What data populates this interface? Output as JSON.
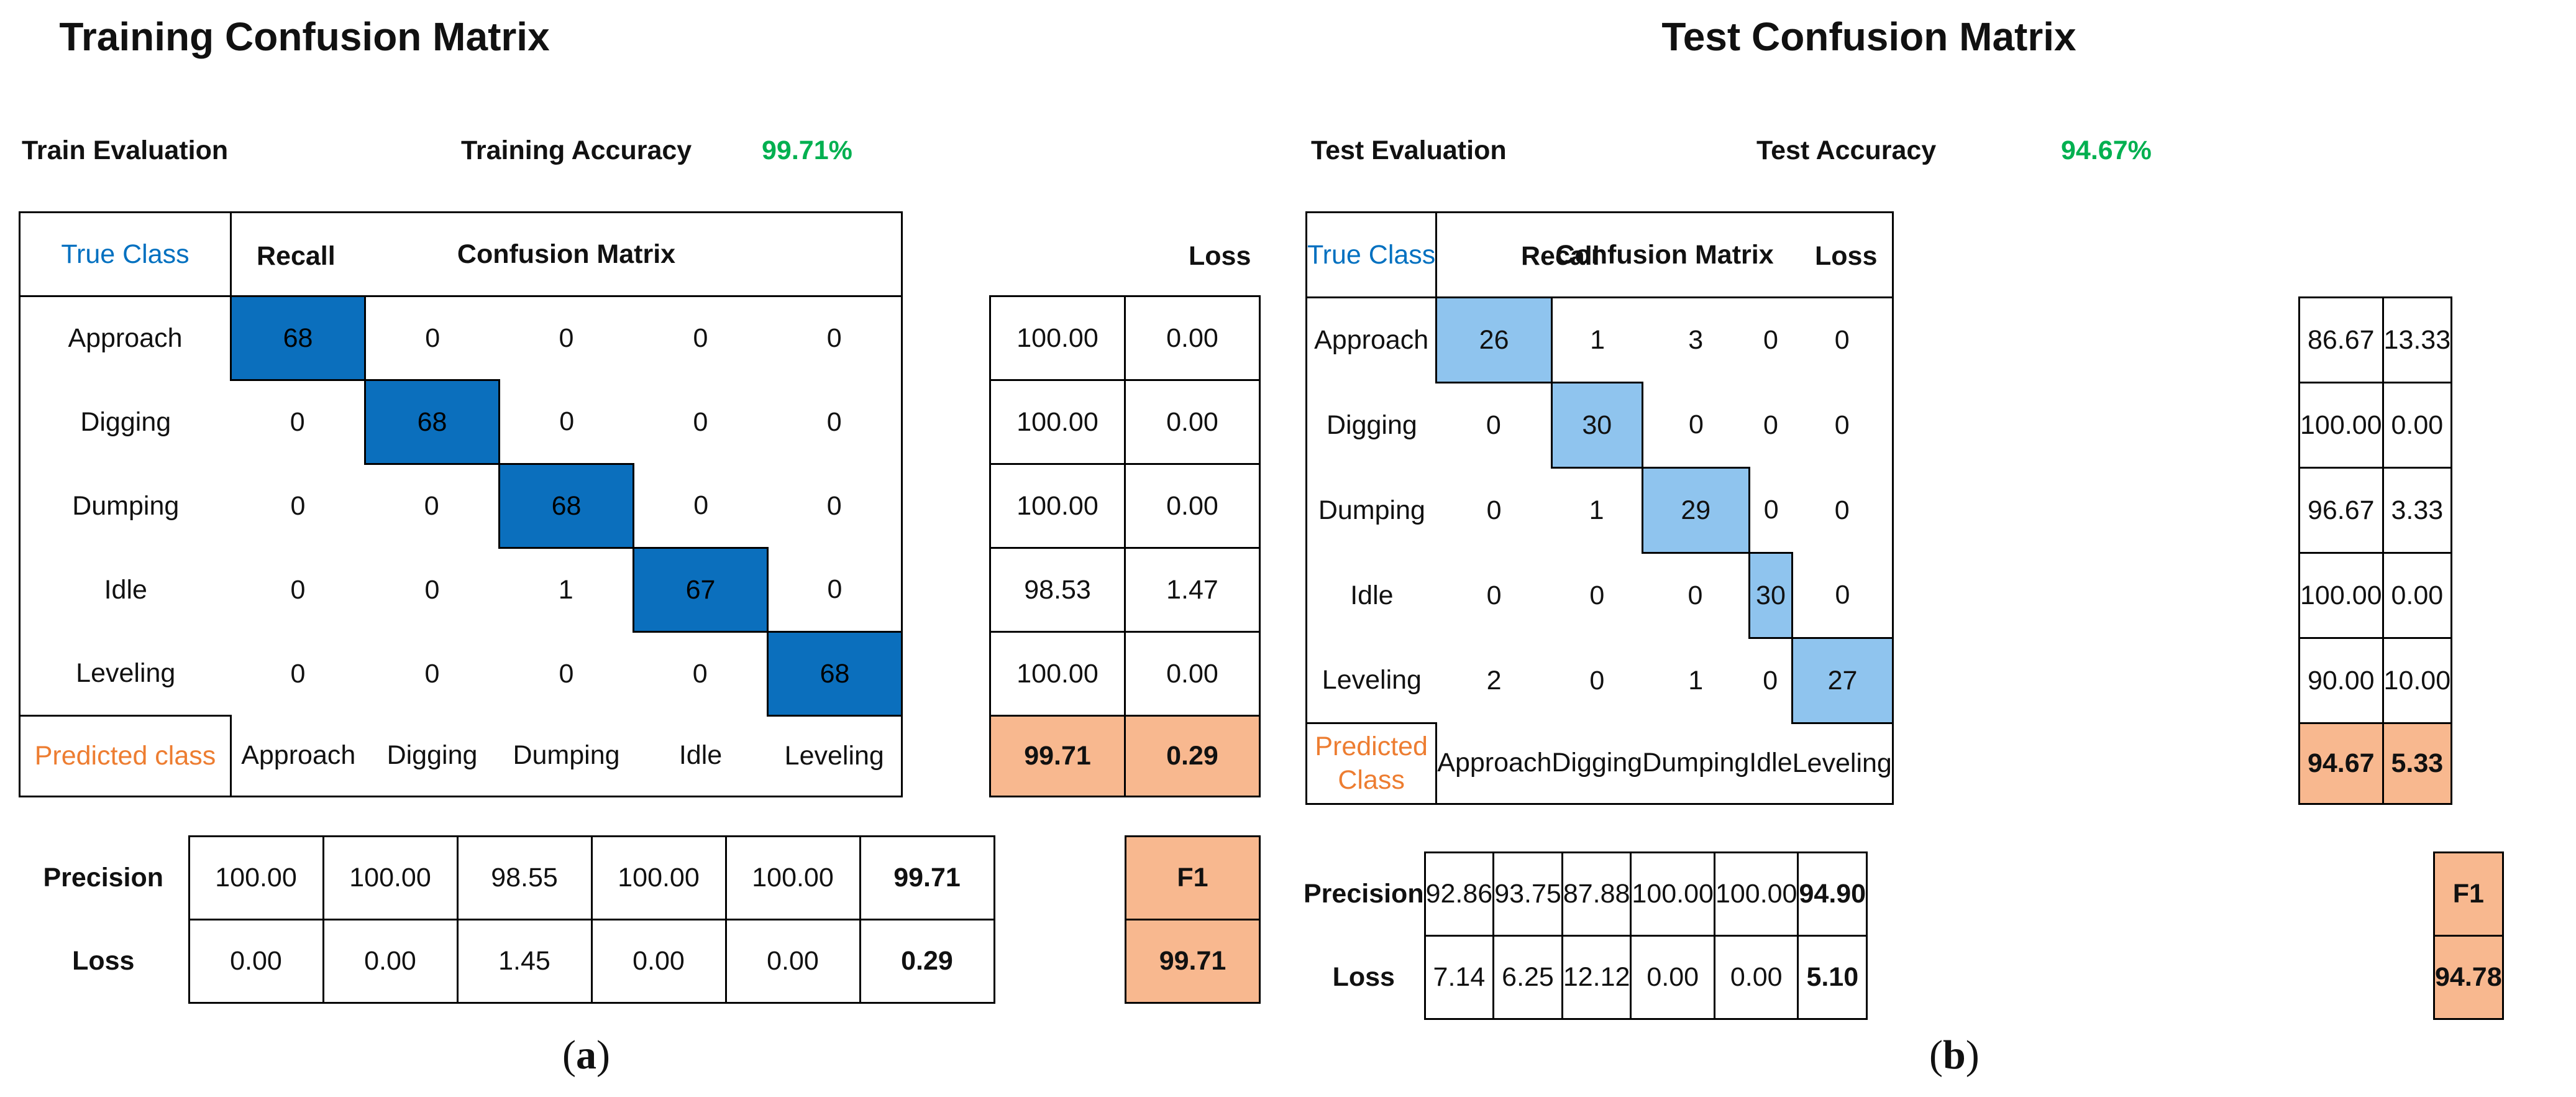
{
  "chart_data": [
    {
      "type": "table",
      "panel_label": "a",
      "title": "Training Confusion Matrix",
      "evaluation_label": "Train Evaluation",
      "accuracy_label": "Training Accuracy",
      "accuracy_value": "99.71%",
      "true_class_label": "True Class",
      "predicted_class_label": "Predicted class",
      "matrix_header": "Confusion Matrix",
      "classes": [
        "Approach",
        "Digging",
        "Dumping",
        "Idle",
        "Leveling"
      ],
      "matrix": [
        [
          68,
          0,
          0,
          0,
          0
        ],
        [
          0,
          68,
          0,
          0,
          0
        ],
        [
          0,
          0,
          68,
          0,
          0
        ],
        [
          0,
          0,
          1,
          67,
          0
        ],
        [
          0,
          0,
          0,
          0,
          68
        ]
      ],
      "recall_header": "Recall",
      "loss_header": "Loss",
      "recall": [
        "100.00",
        "100.00",
        "100.00",
        "98.53",
        "100.00"
      ],
      "recall_loss": [
        "0.00",
        "0.00",
        "0.00",
        "1.47",
        "0.00"
      ],
      "recall_total": "99.71",
      "recall_loss_total": "0.29",
      "precision_label": "Precision",
      "precision_loss_label": "Loss",
      "precision": [
        "100.00",
        "100.00",
        "98.55",
        "100.00",
        "100.00"
      ],
      "precision_total": "99.71",
      "precision_loss": [
        "0.00",
        "0.00",
        "1.45",
        "0.00",
        "0.00"
      ],
      "precision_loss_total": "0.29",
      "f1_label": "F1",
      "f1_value": "99.71",
      "highlight_colors": {
        "diagonal": "#0b6fbd",
        "summary": "#f8b88f"
      }
    },
    {
      "type": "table",
      "panel_label": "b",
      "title": "Test Confusion Matrix",
      "evaluation_label": "Test Evaluation",
      "accuracy_label": "Test Accuracy",
      "accuracy_value": "94.67%",
      "true_class_label": "True Class",
      "predicted_class_label": "Predicted Class",
      "matrix_header": "Confusion Matrix",
      "classes": [
        "Approach",
        "Digging",
        "Dumping",
        "Idle",
        "Leveling"
      ],
      "matrix": [
        [
          26,
          1,
          3,
          0,
          0
        ],
        [
          0,
          30,
          0,
          0,
          0
        ],
        [
          0,
          1,
          29,
          0,
          0
        ],
        [
          0,
          0,
          0,
          30,
          0
        ],
        [
          2,
          0,
          1,
          0,
          27
        ]
      ],
      "recall_header": "Recall",
      "loss_header": "Loss",
      "recall": [
        "86.67",
        "100.00",
        "96.67",
        "100.00",
        "90.00"
      ],
      "recall_loss": [
        "13.33",
        "0.00",
        "3.33",
        "0.00",
        "10.00"
      ],
      "recall_total": "94.67",
      "recall_loss_total": "5.33",
      "precision_label": "Precision",
      "precision_loss_label": "Loss",
      "precision": [
        "92.86",
        "93.75",
        "87.88",
        "100.00",
        "100.00"
      ],
      "precision_total": "94.90",
      "precision_loss": [
        "7.14",
        "6.25",
        "12.12",
        "0.00",
        "0.00"
      ],
      "precision_loss_total": "5.10",
      "f1_label": "F1",
      "f1_value": "94.78",
      "highlight_colors": {
        "diagonal": "#8fc4ee",
        "summary": "#f8b88f"
      }
    }
  ]
}
